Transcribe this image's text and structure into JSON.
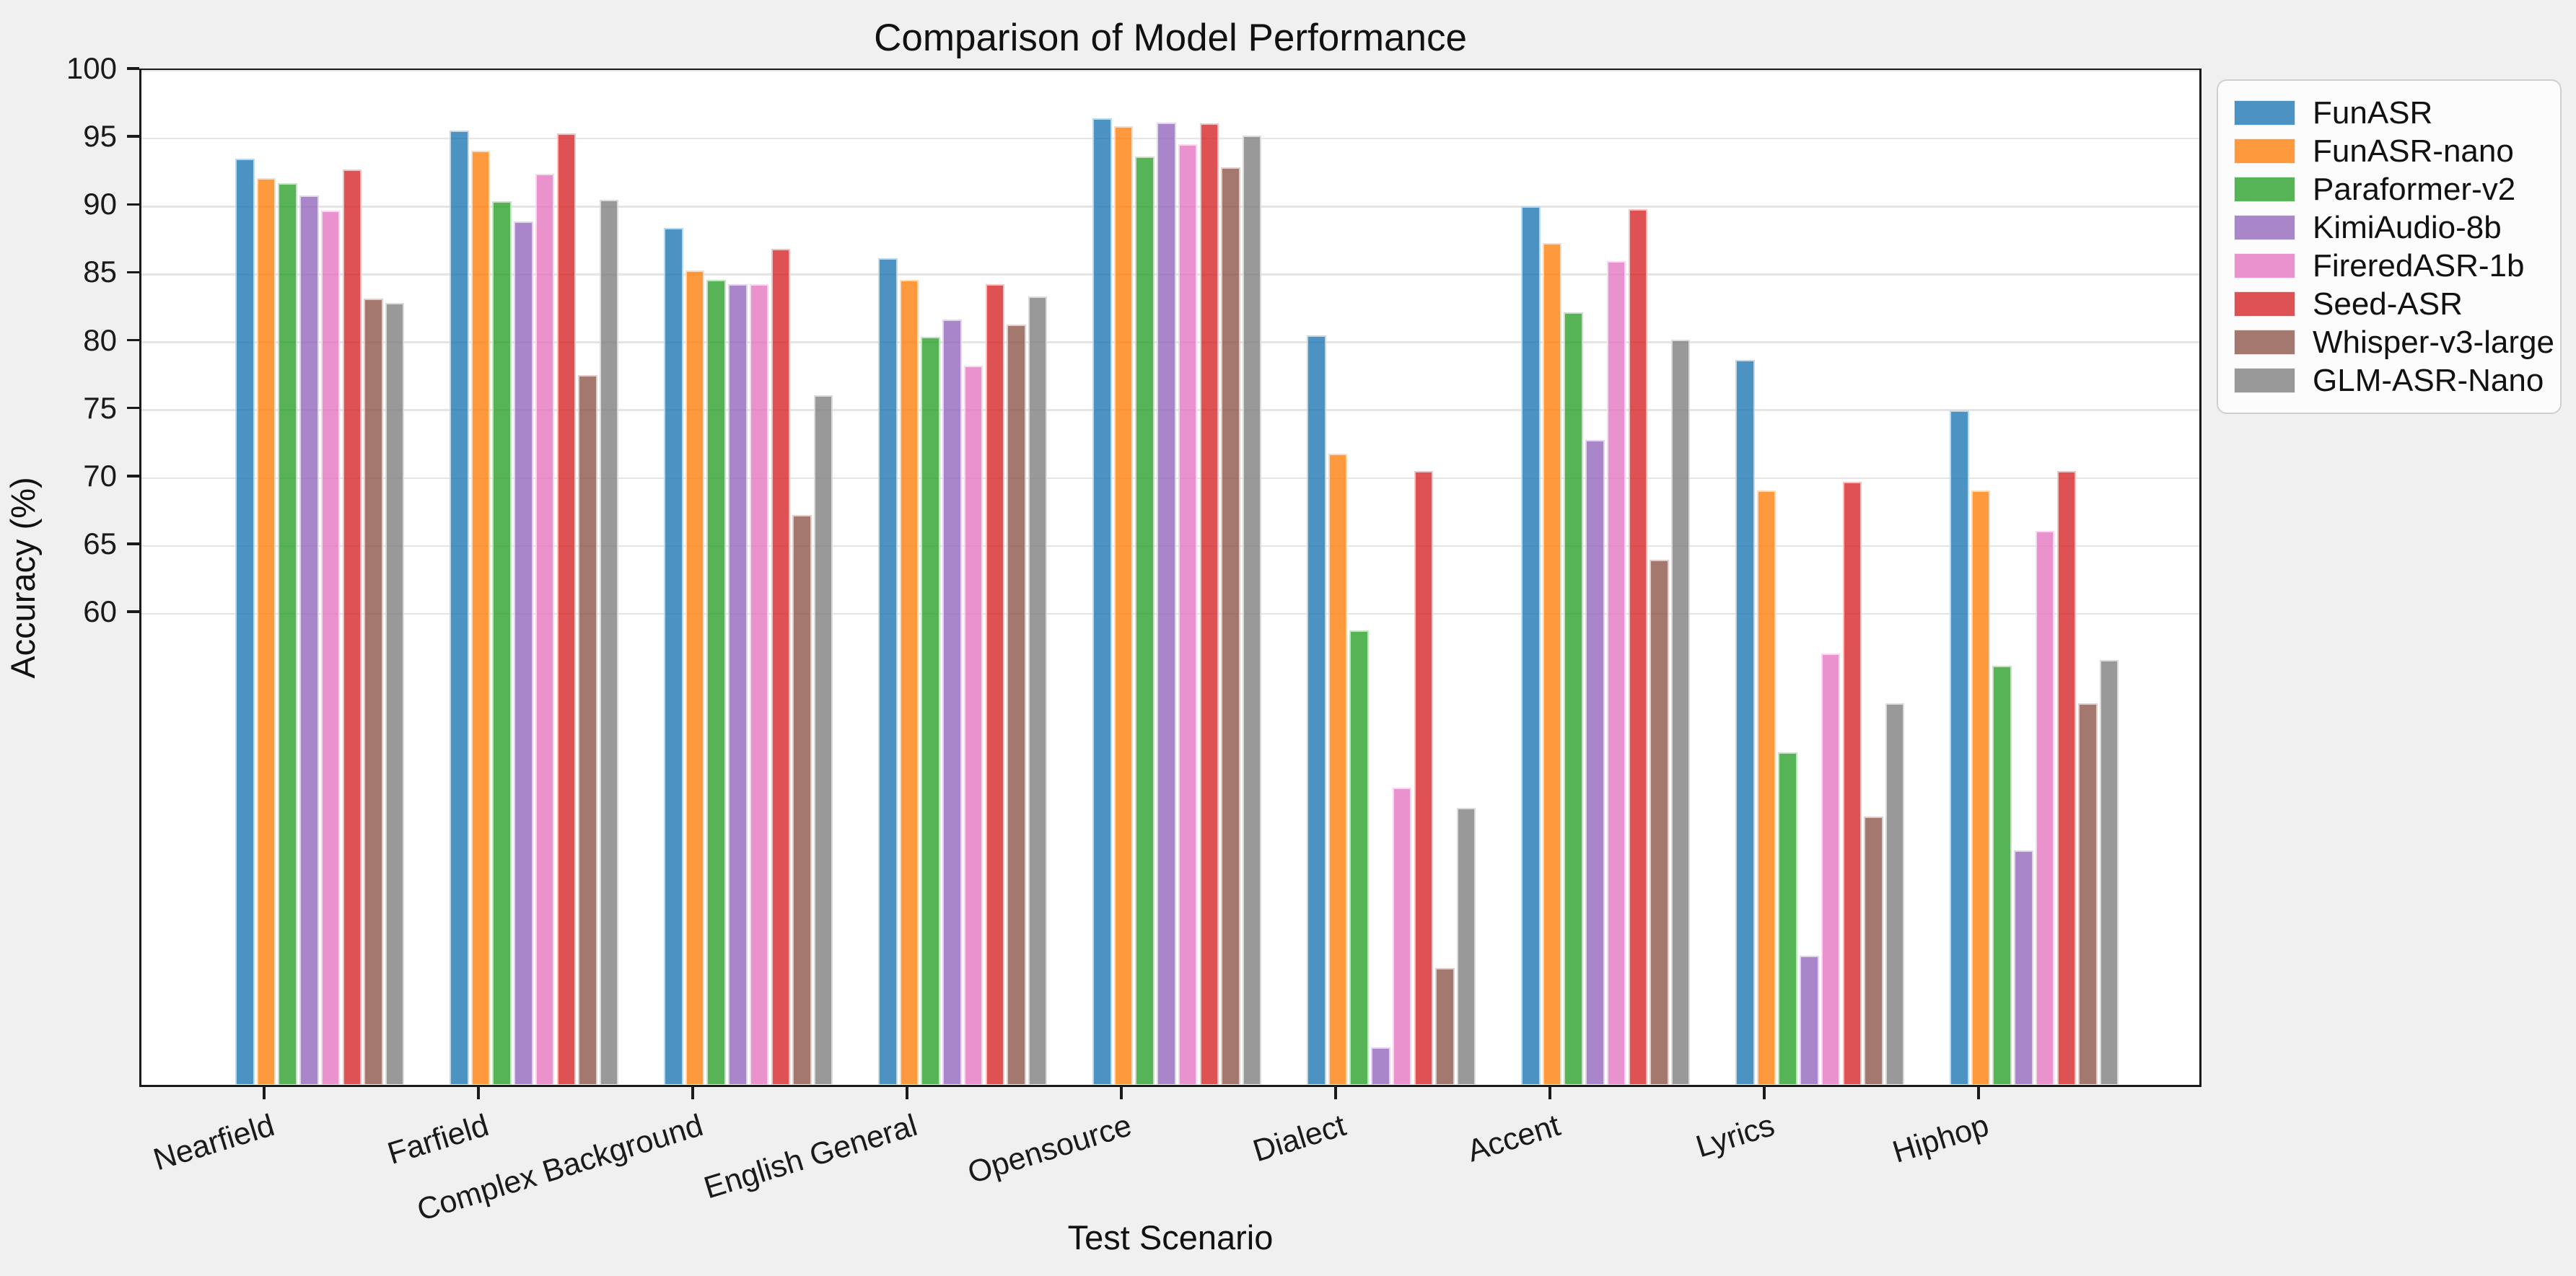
{
  "figure": {
    "background": "#f0f0f0",
    "plot_background": "#ffffff",
    "spine_color": "#1a1a1a",
    "grid_color": "#e5e5e5"
  },
  "chart_data": {
    "type": "bar",
    "title": "Comparison of Model Performance",
    "xlabel": "Test Scenario",
    "ylabel": "Accuracy (%)",
    "categories": [
      "Nearfield",
      "Farfield",
      "Complex Background",
      "English General",
      "Opensource",
      "Dialect",
      "Accent",
      "Lyrics",
      "Hiphop"
    ],
    "series": [
      {
        "name": "FunASR",
        "color": "rgba(31,119,180,0.8)",
        "values": [
          93.5,
          95.6,
          88.4,
          86.2,
          96.5,
          80.5,
          90.0,
          78.7,
          75.0
        ]
      },
      {
        "name": "FunASR-nano",
        "color": "rgba(255,127,14,0.8)",
        "values": [
          92.1,
          94.1,
          85.3,
          84.6,
          95.9,
          71.8,
          87.3,
          69.1,
          69.1
        ]
      },
      {
        "name": "Paraformer-v2",
        "color": "rgba(44,160,44,0.8)",
        "values": [
          91.7,
          90.4,
          84.6,
          80.4,
          93.7,
          58.8,
          82.2,
          49.8,
          56.2
        ]
      },
      {
        "name": "KimiAudio-8b",
        "color": "rgba(148,103,189,0.8)",
        "values": [
          90.8,
          88.9,
          84.3,
          81.7,
          96.2,
          28.1,
          72.8,
          34.8,
          42.6
        ]
      },
      {
        "name": "FireredASR-1b",
        "color": "rgba(227,119,194,0.8)",
        "values": [
          89.7,
          92.4,
          84.3,
          78.3,
          94.6,
          47.2,
          86.0,
          57.1,
          66.1
        ]
      },
      {
        "name": "Seed-ASR",
        "color": "rgba(214,39,40,0.8)",
        "values": [
          92.7,
          95.4,
          86.9,
          84.3,
          96.1,
          70.5,
          89.8,
          69.7,
          70.5
        ]
      },
      {
        "name": "Whisper-v3-large",
        "color": "rgba(140,86,75,0.8)",
        "values": [
          83.2,
          77.6,
          67.3,
          81.3,
          92.9,
          33.9,
          64.0,
          45.1,
          53.4
        ]
      },
      {
        "name": "GLM-ASR-Nano",
        "color": "rgba(127,127,127,0.8)",
        "values": [
          82.9,
          90.5,
          76.1,
          83.4,
          95.2,
          45.7,
          80.2,
          53.4,
          56.6
        ]
      }
    ],
    "ylim": [
      25,
      100
    ],
    "yticks": [
      60,
      65,
      70,
      75,
      80,
      85,
      90,
      95,
      100
    ],
    "grid": true,
    "legend_position": "upper right outside",
    "bar_alpha": 0.8
  }
}
